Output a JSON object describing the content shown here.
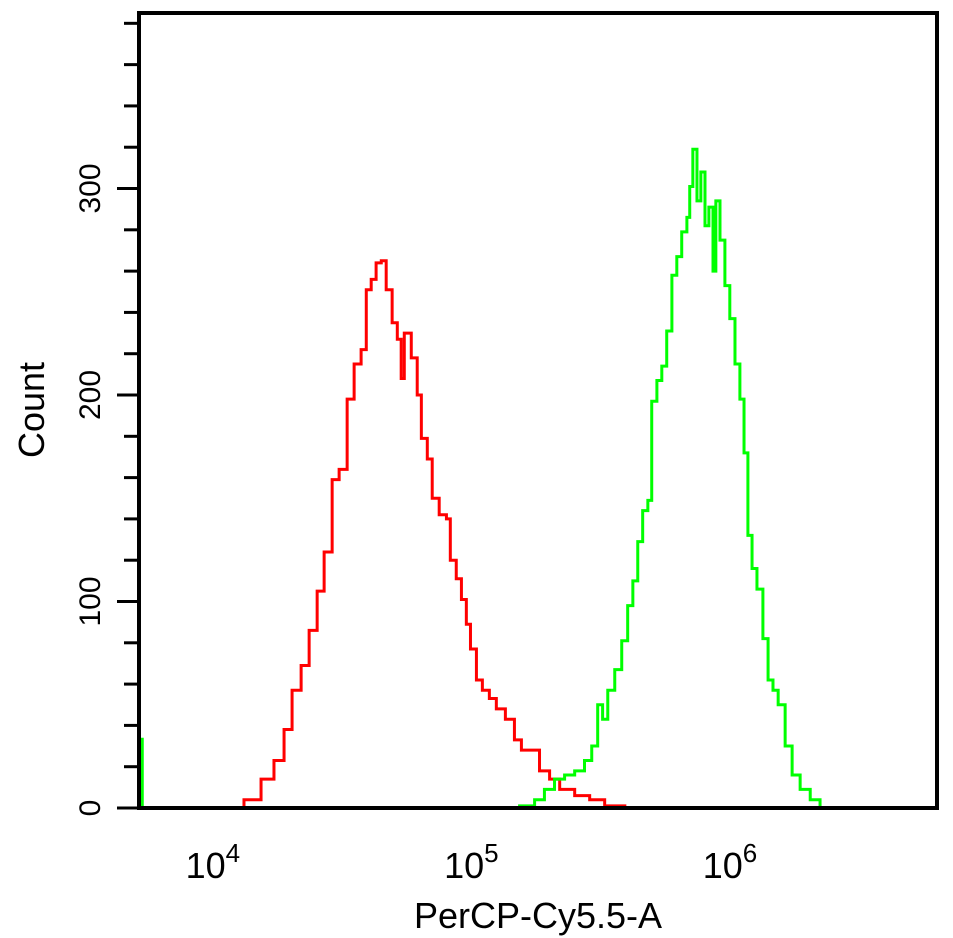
{
  "chart_data": {
    "type": "line",
    "title": "",
    "xlabel": "PerCP-Cy5.5-A",
    "ylabel": "Count",
    "xscale": "log",
    "xlim": [
      5000,
      6100000
    ],
    "ylim": [
      0,
      385
    ],
    "grid": false,
    "legend": "none",
    "y_ticks": [
      0,
      100,
      200,
      300
    ],
    "y_tick_labels": [
      "0",
      "100",
      "200",
      "300"
    ],
    "y_minor_step": 20,
    "x_ticks": [
      {
        "base": "10",
        "exp": "4",
        "value": 10000
      },
      {
        "base": "10",
        "exp": "5",
        "value": 100000
      },
      {
        "base": "10",
        "exp": "6",
        "value": 1000000
      }
    ],
    "series": [
      {
        "name": "red",
        "color": "#ff0000",
        "log10_x": [
          4.054,
          4.105,
          4.171,
          4.221,
          4.26,
          4.291,
          4.326,
          4.357,
          4.388,
          4.415,
          4.446,
          4.473,
          4.504,
          4.531,
          4.558,
          4.578,
          4.597,
          4.616,
          4.636,
          4.655,
          4.678,
          4.698,
          4.713,
          4.725,
          4.752,
          4.775,
          4.791,
          4.814,
          4.833,
          4.86,
          4.888,
          4.903,
          4.926,
          4.946,
          4.965,
          4.981,
          5.004,
          5.027,
          5.054,
          5.081,
          5.116,
          5.151,
          5.178,
          5.209,
          5.248,
          5.287,
          5.326,
          5.384,
          5.442,
          5.5,
          5.578
        ],
        "count": [
          0,
          4,
          14,
          23,
          38,
          57,
          69,
          86,
          105,
          124,
          159,
          164,
          198,
          215,
          222,
          251,
          256,
          264,
          265,
          251,
          235,
          227,
          208,
          230,
          218,
          200,
          179,
          169,
          150,
          142,
          140,
          120,
          111,
          101,
          89,
          77,
          62,
          57,
          53,
          48,
          43,
          33,
          28,
          28,
          18,
          14,
          9,
          6,
          4,
          1,
          0
        ]
      },
      {
        "name": "green",
        "color": "#00ff00",
        "log10_x": [
          5.124,
          5.171,
          5.229,
          5.267,
          5.306,
          5.345,
          5.384,
          5.422,
          5.45,
          5.473,
          5.492,
          5.512,
          5.539,
          5.566,
          5.589,
          5.609,
          5.628,
          5.647,
          5.667,
          5.682,
          5.702,
          5.721,
          5.74,
          5.76,
          5.779,
          5.798,
          5.818,
          5.829,
          5.841,
          5.857,
          5.872,
          5.888,
          5.903,
          5.919,
          5.93,
          5.946,
          5.965,
          5.984,
          6.004,
          6.023,
          6.039,
          6.054,
          6.07,
          6.089,
          6.112,
          6.132,
          6.151,
          6.171,
          6.198,
          6.225,
          6.256,
          6.295,
          6.333
        ],
        "count": [
          0,
          1,
          4,
          9,
          14,
          16,
          18,
          23,
          30,
          50,
          43,
          57,
          67,
          81,
          98,
          110,
          129,
          144,
          149,
          197,
          207,
          214,
          231,
          258,
          267,
          279,
          286,
          301,
          319,
          294,
          308,
          282,
          291,
          260,
          294,
          275,
          253,
          237,
          215,
          198,
          172,
          132,
          116,
          106,
          82,
          62,
          57,
          50,
          30,
          16,
          9,
          4,
          0
        ],
        "edge_bin": {
          "log10_x": 3.7,
          "count": 34
        }
      }
    ]
  }
}
